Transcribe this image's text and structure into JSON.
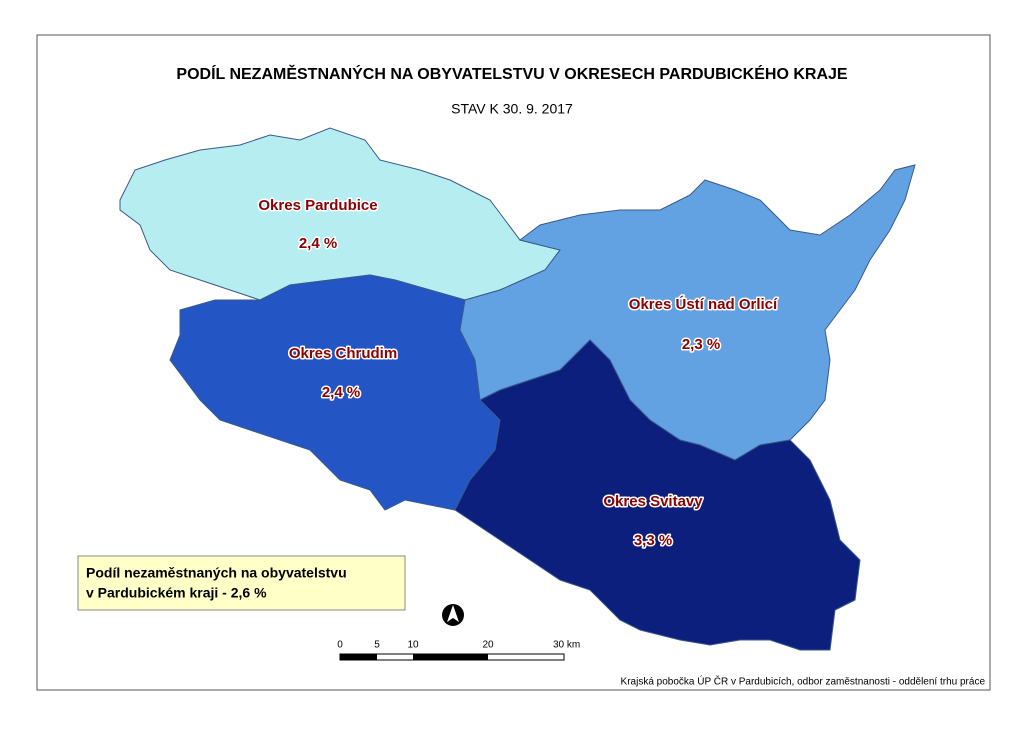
{
  "title": "PODÍL NEZAMĚSTNANÝCH NA OBYVATELSTVU V OKRESECH PARDUBICKÉHO KRAJE",
  "subtitle": "STAV K 30. 9. 2017",
  "regions": [
    {
      "name": "Okres Pardubice",
      "value": "2,4 %",
      "color": "#b5edf0"
    },
    {
      "name": "Okres Chrudim",
      "value": "2,4 %",
      "color": "#2356c4"
    },
    {
      "name": "Okres Ústí nad Orlicí",
      "value": "2,3 %",
      "color": "#62a2e2"
    },
    {
      "name": "Okres Svitavy",
      "value": "3,3 %",
      "color": "#0c1f7c"
    }
  ],
  "summary": [
    "Podíl nezaměstnaných na obyvatelstvu",
    "v Pardubickém kraji - 2,6 %"
  ],
  "scale": [
    "0",
    "5",
    "10",
    "20",
    "30 km"
  ],
  "credit": "Krajská pobočka ÚP ČR v Pardubicích, odbor zaměstnanosti - oddělení trhu práce"
}
